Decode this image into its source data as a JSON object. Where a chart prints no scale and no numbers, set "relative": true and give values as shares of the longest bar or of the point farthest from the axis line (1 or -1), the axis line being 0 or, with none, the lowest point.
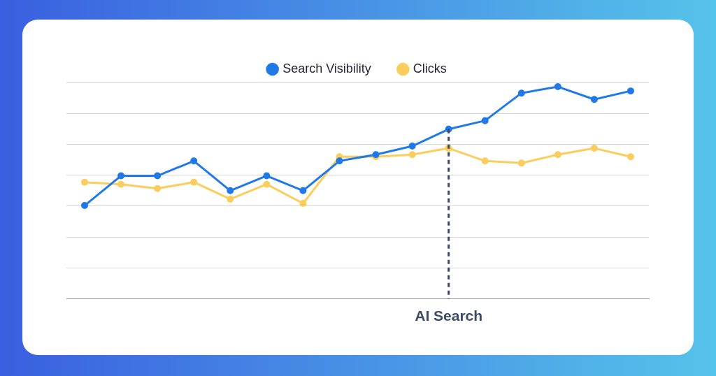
{
  "chart_data": {
    "type": "line",
    "relative": true,
    "categories": [
      null,
      null,
      null,
      null,
      null,
      null,
      null,
      null,
      null,
      null,
      null,
      null,
      null,
      null,
      null,
      null
    ],
    "series": [
      {
        "name": "Search Visibility",
        "color": "#1f7ae8",
        "values": [
          0.44,
          0.58,
          0.58,
          0.65,
          0.51,
          0.58,
          0.51,
          0.65,
          0.68,
          0.72,
          0.8,
          0.84,
          0.97,
          1,
          0.94,
          0.98
        ]
      },
      {
        "name": "Clicks",
        "color": "#fbcd5d",
        "values": [
          0.55,
          0.54,
          0.52,
          0.55,
          0.47,
          0.54,
          0.45,
          0.67,
          0.67,
          0.68,
          0.71,
          0.65,
          0.64,
          0.68,
          0.71,
          0.67
        ]
      }
    ],
    "annotations": [
      "AI Search"
    ],
    "grid": "y",
    "legend": "top",
    "marker": "circle",
    "line_style": "solid"
  }
}
